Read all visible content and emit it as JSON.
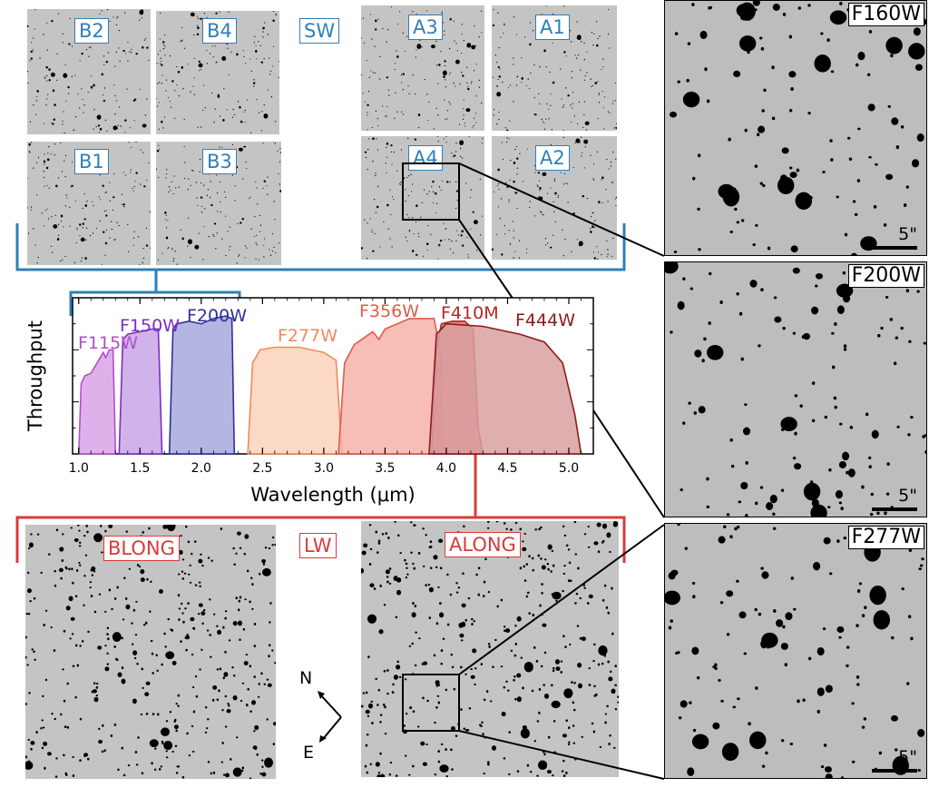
{
  "sw_label": "SW",
  "lw_label": "LW",
  "sw_detectors": [
    {
      "id": "B2"
    },
    {
      "id": "B4"
    },
    {
      "id": "B1"
    },
    {
      "id": "B3"
    },
    {
      "id": "A3"
    },
    {
      "id": "A1"
    },
    {
      "id": "A4"
    },
    {
      "id": "A2"
    }
  ],
  "lw_detectors": [
    {
      "id": "BLONG"
    },
    {
      "id": "ALONG"
    }
  ],
  "zoom_panels": [
    {
      "filter": "F160W",
      "scale": "5\""
    },
    {
      "filter": "F200W",
      "scale": "5\""
    },
    {
      "filter": "F277W",
      "scale": "5\""
    }
  ],
  "compass": {
    "north": "N",
    "east": "E"
  },
  "colors": {
    "sw": "#2e7fb8",
    "lw": "#d93a3a"
  },
  "chart_data": {
    "type": "area",
    "xlabel": "Wavelength (μm)",
    "ylabel": "Throughput",
    "xlim": [
      0.95,
      5.2
    ],
    "ylim": [
      0,
      0.6
    ],
    "xticks": [
      "1.0",
      "1.5",
      "2.0",
      "2.5",
      "3.0",
      "3.5",
      "4.0",
      "4.5",
      "5.0"
    ],
    "xtick_values": [
      1.0,
      1.5,
      2.0,
      2.5,
      3.0,
      3.5,
      4.0,
      4.5,
      5.0
    ],
    "series": [
      {
        "name": "F115W",
        "color": "#b04fc9",
        "fill": "#d9a3e8",
        "points": [
          [
            1.0,
            0
          ],
          [
            1.02,
            0.27
          ],
          [
            1.05,
            0.3
          ],
          [
            1.1,
            0.31
          ],
          [
            1.15,
            0.35
          ],
          [
            1.2,
            0.39
          ],
          [
            1.22,
            0.37
          ],
          [
            1.25,
            0.4
          ],
          [
            1.28,
            0.4
          ],
          [
            1.3,
            0
          ]
        ]
      },
      {
        "name": "F150W",
        "color": "#7b2fc0",
        "fill": "#c9a6e6",
        "points": [
          [
            1.33,
            0
          ],
          [
            1.36,
            0.44
          ],
          [
            1.4,
            0.46
          ],
          [
            1.5,
            0.47
          ],
          [
            1.6,
            0.48
          ],
          [
            1.65,
            0.48
          ],
          [
            1.68,
            0
          ]
        ]
      },
      {
        "name": "F200W",
        "color": "#2f2f9e",
        "fill": "#a8a8dc",
        "points": [
          [
            1.74,
            0
          ],
          [
            1.77,
            0.48
          ],
          [
            1.8,
            0.5
          ],
          [
            1.9,
            0.51
          ],
          [
            2.0,
            0.5
          ],
          [
            2.1,
            0.52
          ],
          [
            2.2,
            0.53
          ],
          [
            2.25,
            0.52
          ],
          [
            2.27,
            0
          ]
        ]
      },
      {
        "name": "F277W",
        "color": "#f08a5c",
        "fill": "#fbd2bd",
        "points": [
          [
            2.38,
            0
          ],
          [
            2.42,
            0.35
          ],
          [
            2.48,
            0.4
          ],
          [
            2.6,
            0.41
          ],
          [
            2.8,
            0.41
          ],
          [
            3.0,
            0.39
          ],
          [
            3.1,
            0.36
          ],
          [
            3.15,
            0
          ]
        ]
      },
      {
        "name": "F356W",
        "color": "#e05a4a",
        "fill": "#f4b3a9",
        "points": [
          [
            3.12,
            0
          ],
          [
            3.17,
            0.35
          ],
          [
            3.25,
            0.42
          ],
          [
            3.4,
            0.47
          ],
          [
            3.45,
            0.44
          ],
          [
            3.5,
            0.48
          ],
          [
            3.7,
            0.52
          ],
          [
            3.9,
            0.52
          ],
          [
            3.95,
            0.4
          ],
          [
            3.98,
            0
          ]
        ]
      },
      {
        "name": "F410M",
        "color": "#b52525",
        "fill": "#d86060",
        "points": [
          [
            3.88,
            0
          ],
          [
            3.92,
            0.4
          ],
          [
            3.96,
            0.5
          ],
          [
            4.05,
            0.51
          ],
          [
            4.15,
            0.51
          ],
          [
            4.22,
            0.48
          ],
          [
            4.26,
            0.1
          ],
          [
            4.3,
            0
          ]
        ]
      },
      {
        "name": "F444W",
        "color": "#8a1a1a",
        "fill": "#d9a0a0",
        "points": [
          [
            3.86,
            0
          ],
          [
            3.92,
            0.46
          ],
          [
            4.0,
            0.5
          ],
          [
            4.3,
            0.49
          ],
          [
            4.6,
            0.46
          ],
          [
            4.8,
            0.43
          ],
          [
            4.95,
            0.35
          ],
          [
            5.05,
            0.15
          ],
          [
            5.1,
            0
          ]
        ]
      }
    ]
  }
}
